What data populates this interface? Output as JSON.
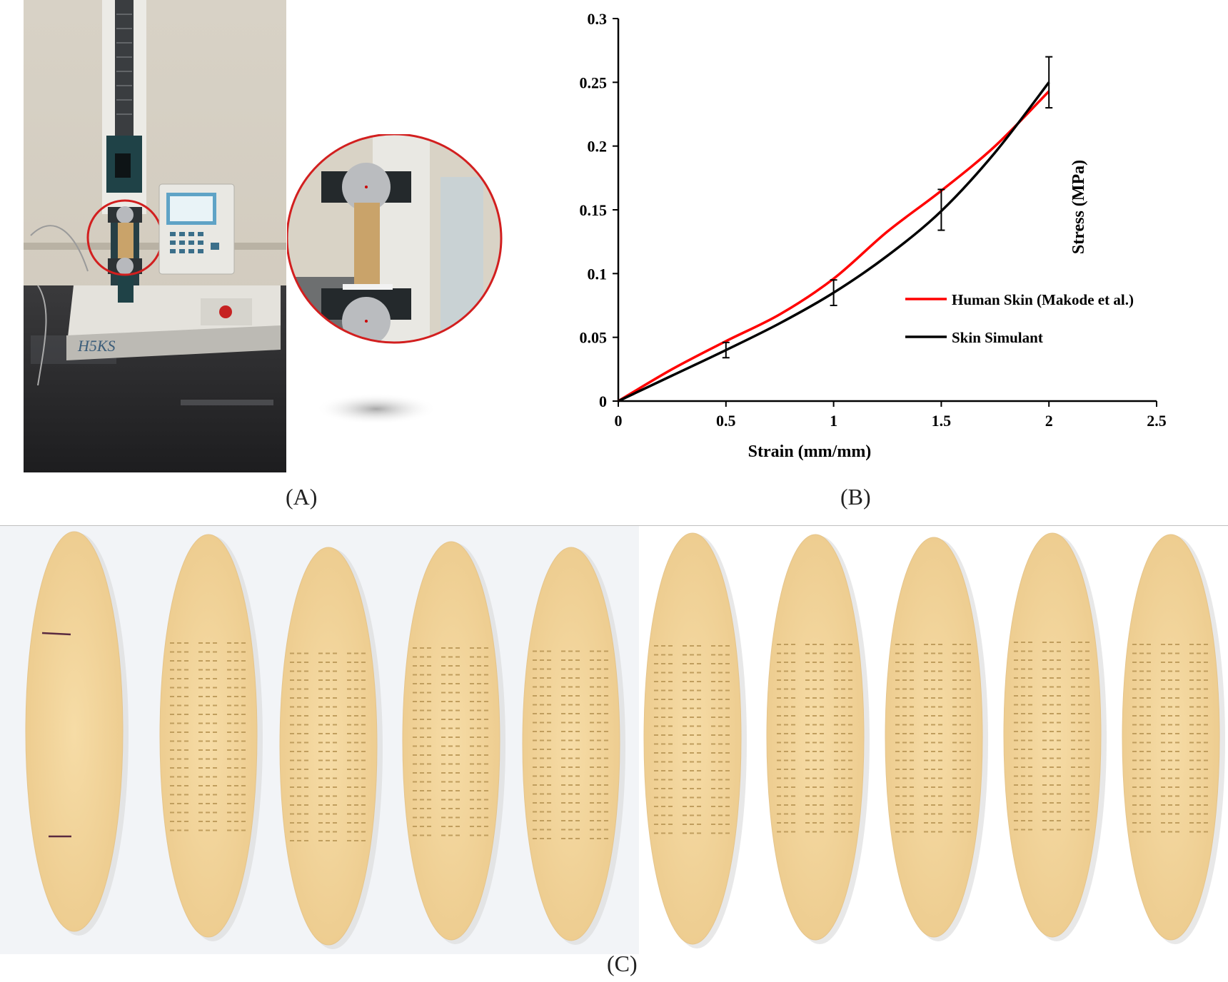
{
  "figure": {
    "panel_labels": {
      "a": "(A)",
      "b": "(B)",
      "c": "(C)"
    },
    "machine_label": "H5KS"
  },
  "chart_data": {
    "type": "line",
    "xlabel": "Strain (mm/mm)",
    "ylabel": "Stress (MPa)",
    "xlim": [
      0,
      2.5
    ],
    "ylim": [
      0,
      0.3
    ],
    "xticks": [
      "0",
      "0.5",
      "1",
      "1.5",
      "2",
      "2.5"
    ],
    "yticks": [
      "0",
      "0.05",
      "0.1",
      "0.15",
      "0.2",
      "0.25",
      "0.3"
    ],
    "grid": false,
    "legend_position": "right",
    "series": [
      {
        "name": "Human Skin (Makode et al.)",
        "color": "#ff0000",
        "x": [
          0,
          0.25,
          0.5,
          0.75,
          1.0,
          1.25,
          1.5,
          1.75,
          2.0
        ],
        "y": [
          0,
          0.025,
          0.047,
          0.068,
          0.096,
          0.133,
          0.165,
          0.2,
          0.243
        ]
      },
      {
        "name": "Skin Simulant",
        "color": "#000000",
        "x": [
          0,
          0.25,
          0.5,
          0.75,
          1.0,
          1.25,
          1.5,
          1.75,
          2.0
        ],
        "y": [
          0,
          0.02,
          0.04,
          0.061,
          0.085,
          0.114,
          0.149,
          0.195,
          0.25
        ],
        "error_x": [
          0.5,
          1.0,
          1.5,
          2.0
        ],
        "error_y": [
          0.04,
          0.085,
          0.15,
          0.25
        ],
        "error_delta": [
          0.006,
          0.01,
          0.016,
          0.02
        ]
      }
    ]
  },
  "strips": {
    "count": 10,
    "patterned": [
      false,
      true,
      true,
      true,
      true,
      true,
      true,
      true,
      true,
      true
    ]
  }
}
